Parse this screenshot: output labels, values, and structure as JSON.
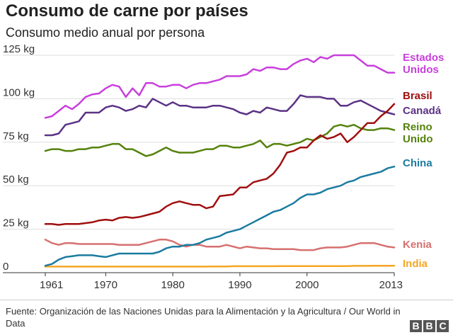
{
  "header": {
    "title": "Consumo de carne por países",
    "subtitle": "Consumo medio anual por persona"
  },
  "footer": {
    "source": "Fuente: Organización de las Naciones Unidas para la Alimentación y la Agricultura / Our World in Data"
  },
  "logo": {
    "letters": [
      "B",
      "B",
      "C"
    ]
  },
  "chart_data": {
    "type": "line",
    "title": "Consumo de carne por países",
    "subtitle": "Consumo medio anual por persona",
    "xlabel": "",
    "ylabel": "",
    "xlim": [
      1961,
      2013
    ],
    "ylim": [
      0,
      125
    ],
    "x_ticks": [
      1961,
      1970,
      1980,
      1990,
      2000,
      2013
    ],
    "y_ticks": [
      {
        "value": 0,
        "label": "0"
      },
      {
        "value": 25,
        "label": "25 kg"
      },
      {
        "value": 50,
        "label": "50 kg"
      },
      {
        "value": 75,
        "label": "75 kg"
      },
      {
        "value": 100,
        "label": "100 kg"
      },
      {
        "value": 125,
        "label": "125 kg"
      }
    ],
    "grid": "horizontal",
    "legend": "labels at right end of lines",
    "x": [
      1961,
      1962,
      1963,
      1964,
      1965,
      1966,
      1967,
      1968,
      1969,
      1970,
      1971,
      1972,
      1973,
      1974,
      1975,
      1976,
      1977,
      1978,
      1979,
      1980,
      1981,
      1982,
      1983,
      1984,
      1985,
      1986,
      1987,
      1988,
      1989,
      1990,
      1991,
      1992,
      1993,
      1994,
      1995,
      1996,
      1997,
      1998,
      1999,
      2000,
      2001,
      2002,
      2003,
      2004,
      2005,
      2006,
      2007,
      2008,
      2009,
      2010,
      2011,
      2012,
      2013
    ],
    "series": [
      {
        "name": "Estados Unidos",
        "label_lines": [
          "Estados",
          "Unidos"
        ],
        "color": "#c83fdc",
        "values": [
          89,
          90,
          93,
          96,
          94,
          97,
          101,
          102.5,
          103,
          106,
          108,
          107,
          101,
          106,
          102,
          109,
          109,
          107,
          107,
          108,
          108,
          106,
          108,
          109,
          109,
          110,
          111,
          113,
          113,
          113,
          114,
          117,
          116,
          118,
          118,
          117,
          117,
          120,
          122,
          123,
          121,
          124,
          123,
          125,
          125,
          125,
          125,
          122,
          119,
          119,
          117,
          115,
          115
        ]
      },
      {
        "name": "Brasil",
        "label_lines": [
          "Brasil"
        ],
        "color": "#a00f0f",
        "values": [
          28,
          28,
          27.5,
          28,
          28,
          28,
          28.5,
          29,
          30,
          30.5,
          30,
          31.5,
          32,
          31.5,
          32,
          33,
          34,
          35,
          38,
          40,
          41,
          40,
          39,
          39,
          37,
          38,
          44,
          44.5,
          45,
          49,
          49,
          52,
          53,
          54,
          57,
          62,
          69,
          70,
          72,
          72,
          76,
          79,
          77,
          78,
          80,
          75,
          78,
          82,
          86,
          86,
          90,
          93,
          97
        ]
      },
      {
        "name": "Canadá",
        "label_lines": [
          "Canadá"
        ],
        "color": "#5c3285",
        "values": [
          79,
          79,
          80,
          85,
          86,
          87,
          92,
          92,
          92,
          95,
          96,
          95,
          93,
          94,
          96,
          95,
          100,
          98,
          96,
          98,
          96,
          96,
          95,
          95,
          95,
          96,
          96,
          95,
          94,
          92,
          91,
          93,
          92,
          95,
          94,
          93,
          93,
          97,
          102,
          101,
          101,
          101,
          100,
          100,
          96,
          96,
          98,
          99,
          97,
          95,
          93,
          92,
          91
        ]
      },
      {
        "name": "Reino Unido",
        "label_lines": [
          "Reino",
          "Unido"
        ],
        "color": "#54820b",
        "values": [
          70,
          71,
          71,
          70,
          70,
          71,
          71,
          72,
          72,
          73,
          74,
          74,
          71,
          71,
          69,
          67,
          68,
          70,
          72,
          70,
          69,
          69,
          69,
          70,
          71,
          71,
          73,
          73,
          72,
          72,
          73,
          74,
          76,
          72,
          74,
          74,
          73,
          74,
          75,
          77,
          76,
          78,
          80,
          84,
          85,
          84,
          85,
          83,
          82,
          82,
          83,
          83,
          82
        ]
      },
      {
        "name": "China",
        "label_lines": [
          "China"
        ],
        "color": "#1b7ba0",
        "values": [
          4,
          5,
          7.5,
          9,
          9.5,
          10,
          10,
          10,
          9.5,
          9,
          10,
          11,
          11,
          11,
          11,
          11,
          11,
          12,
          14,
          15,
          15,
          16,
          16,
          17,
          19,
          20,
          21,
          23,
          24,
          25,
          27,
          29,
          31,
          33,
          35,
          36,
          38,
          40,
          43,
          45,
          45,
          46,
          48,
          49,
          50,
          52,
          53,
          55,
          56,
          57,
          58,
          60,
          61
        ]
      },
      {
        "name": "Kenia",
        "label_lines": [
          "Kenia"
        ],
        "color": "#d6706f",
        "values": [
          19,
          17,
          16,
          17,
          17,
          16.5,
          16.5,
          16.5,
          16.5,
          16.5,
          16.5,
          16,
          16,
          16,
          16,
          17,
          18,
          19,
          19,
          18,
          16,
          15,
          16,
          16,
          15,
          15,
          15,
          16,
          15,
          14,
          15,
          14.5,
          14,
          14,
          13.5,
          13.5,
          13.5,
          13.5,
          13,
          13,
          13,
          14,
          14.5,
          14.5,
          14.5,
          15,
          16,
          17,
          17,
          17,
          16,
          15,
          14.5
        ]
      },
      {
        "name": "India",
        "label_lines": [
          "India"
        ],
        "color": "#f5a623",
        "values": [
          3.5,
          3.5,
          3.5,
          3.5,
          3.5,
          3.5,
          3.5,
          3.5,
          3.5,
          3.5,
          3.5,
          3.5,
          3.5,
          3.5,
          3.5,
          3.5,
          3.5,
          3.5,
          3.5,
          3.5,
          3.5,
          3.5,
          3.5,
          3.5,
          3.5,
          3.6,
          3.6,
          3.6,
          3.7,
          3.7,
          3.7,
          3.7,
          3.7,
          3.7,
          3.7,
          3.8,
          3.8,
          3.8,
          3.8,
          3.8,
          3.8,
          3.8,
          3.8,
          3.8,
          3.8,
          3.8,
          3.9,
          3.9,
          3.9,
          4,
          4,
          4,
          4
        ]
      }
    ]
  }
}
